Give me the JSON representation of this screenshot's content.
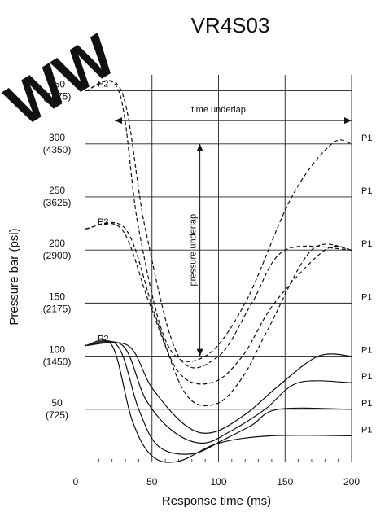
{
  "chart_data": {
    "type": "line",
    "title": "VR4S03",
    "watermark": "WW",
    "xlabel": "Response time (ms)",
    "ylabel": "Pressure bar (psi)",
    "x_ticks": [
      "0",
      "50",
      "100",
      "150",
      "200"
    ],
    "y_ticks": [
      {
        "bar": "350",
        "psi": "(5075)"
      },
      {
        "bar": "300",
        "psi": "(4350)"
      },
      {
        "bar": "250",
        "psi": "(3625)"
      },
      {
        "bar": "200",
        "psi": "(2900)"
      },
      {
        "bar": "150",
        "psi": "(2175)"
      },
      {
        "bar": "100",
        "psi": "(1450)"
      },
      {
        "bar": "50",
        "psi": "(725)"
      }
    ],
    "xlim": [
      0,
      200
    ],
    "ylim": [
      0,
      365
    ],
    "grid": true,
    "annotations": {
      "time_underlap": "time underlap",
      "pressure_underlap": "pressure underlap"
    },
    "p2_labels": [
      {
        "text": "P2",
        "y": 350
      },
      {
        "text": "P2",
        "y": 220
      },
      {
        "text": "P2",
        "y": 110
      }
    ],
    "p1_labels": [
      {
        "text": "P1",
        "y": 300
      },
      {
        "text": "P1",
        "y": 250
      },
      {
        "text": "P1",
        "y": 200
      },
      {
        "text": "P1",
        "y": 150
      },
      {
        "text": "P1",
        "y": 100
      },
      {
        "text": "P1",
        "y": 75
      },
      {
        "text": "P1",
        "y": 50
      },
      {
        "text": "P1",
        "y": 25
      }
    ],
    "series": [
      {
        "style": "dashed",
        "points": [
          [
            0,
            350
          ],
          [
            25,
            350
          ],
          [
            40,
            220
          ],
          [
            62,
            110
          ],
          [
            90,
            100
          ],
          [
            120,
            150
          ],
          [
            155,
            250
          ],
          [
            185,
            300
          ],
          [
            200,
            300
          ]
        ]
      },
      {
        "style": "dashed",
        "points": [
          [
            0,
            350
          ],
          [
            27,
            350
          ],
          [
            45,
            220
          ],
          [
            70,
            100
          ],
          [
            100,
            100
          ],
          [
            125,
            150
          ],
          [
            150,
            200
          ],
          [
            200,
            200
          ]
        ]
      },
      {
        "style": "dashed",
        "points": [
          [
            0,
            220
          ],
          [
            27,
            220
          ],
          [
            48,
            150
          ],
          [
            70,
            85
          ],
          [
            95,
            75
          ],
          [
            118,
            100
          ],
          [
            142,
            150
          ],
          [
            180,
            200
          ],
          [
            200,
            200
          ]
        ]
      },
      {
        "style": "dashed",
        "points": [
          [
            0,
            220
          ],
          [
            30,
            220
          ],
          [
            52,
            140
          ],
          [
            75,
            65
          ],
          [
            98,
            55
          ],
          [
            118,
            80
          ],
          [
            137,
            125
          ],
          [
            170,
            200
          ],
          [
            200,
            200
          ]
        ]
      },
      {
        "style": "solid",
        "points": [
          [
            0,
            110
          ],
          [
            32,
            110
          ],
          [
            50,
            70
          ],
          [
            75,
            35
          ],
          [
            95,
            28
          ],
          [
            120,
            45
          ],
          [
            145,
            72
          ],
          [
            175,
            100
          ],
          [
            200,
            100
          ]
        ]
      },
      {
        "style": "solid",
        "points": [
          [
            0,
            110
          ],
          [
            28,
            110
          ],
          [
            45,
            60
          ],
          [
            65,
            30
          ],
          [
            88,
            18
          ],
          [
            110,
            30
          ],
          [
            135,
            50
          ],
          [
            160,
            75
          ],
          [
            200,
            75
          ]
        ]
      },
      {
        "style": "solid",
        "points": [
          [
            0,
            110
          ],
          [
            24,
            110
          ],
          [
            40,
            50
          ],
          [
            55,
            15
          ],
          [
            80,
            8
          ],
          [
            105,
            22
          ],
          [
            125,
            35
          ],
          [
            145,
            50
          ],
          [
            200,
            50
          ]
        ]
      },
      {
        "style": "solid",
        "points": [
          [
            0,
            110
          ],
          [
            20,
            110
          ],
          [
            35,
            40
          ],
          [
            50,
            6
          ],
          [
            70,
            1
          ],
          [
            100,
            18
          ],
          [
            140,
            25
          ],
          [
            200,
            25
          ]
        ]
      }
    ]
  }
}
